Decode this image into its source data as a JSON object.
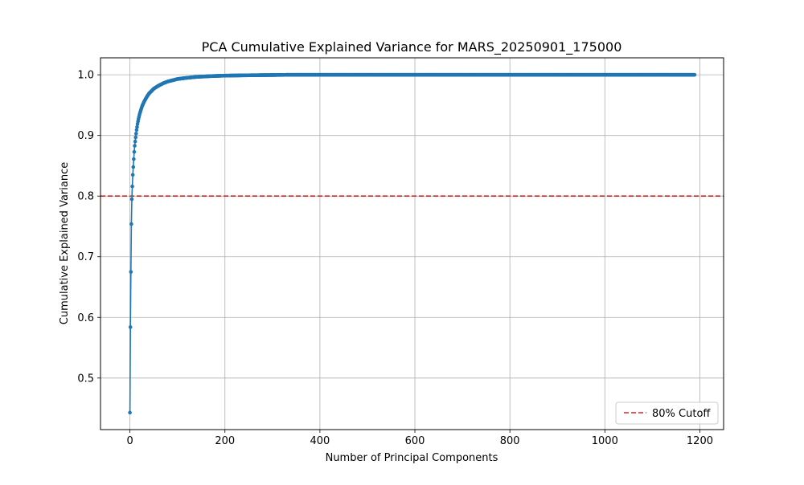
{
  "chart_data": {
    "type": "line",
    "title": "PCA Cumulative Explained Variance for MARS_20250901_175000",
    "xlabel": "Number of Principal Components",
    "ylabel": "Cumulative Explained Variance",
    "xlim": [
      -62,
      1250
    ],
    "ylim": [
      0.415,
      1.028
    ],
    "x_ticks": [
      0,
      200,
      400,
      600,
      800,
      1000,
      1200
    ],
    "x_tick_labels": [
      "0",
      "200",
      "400",
      "600",
      "800",
      "1000",
      "1200"
    ],
    "y_ticks": [
      0.5,
      0.6,
      0.7,
      0.8,
      0.9,
      1.0
    ],
    "y_tick_labels": [
      "0.5",
      "0.6",
      "0.7",
      "0.8",
      "0.9",
      "1.0"
    ],
    "grid": true,
    "series": [
      {
        "color": "#1f77b4",
        "marker": "circle",
        "x_start": 0,
        "x_end": 1189,
        "y_sampled": [
          [
            0,
            0.443
          ],
          [
            1,
            0.584
          ],
          [
            2,
            0.675
          ],
          [
            3,
            0.754
          ],
          [
            4,
            0.795
          ],
          [
            5,
            0.816
          ],
          [
            6,
            0.835
          ],
          [
            7,
            0.848
          ],
          [
            8,
            0.861
          ],
          [
            9,
            0.873
          ],
          [
            10,
            0.883
          ],
          [
            12,
            0.897
          ],
          [
            14,
            0.909
          ],
          [
            16,
            0.919
          ],
          [
            18,
            0.927
          ],
          [
            20,
            0.934
          ],
          [
            23,
            0.942
          ],
          [
            26,
            0.949
          ],
          [
            30,
            0.956
          ],
          [
            35,
            0.963
          ],
          [
            40,
            0.969
          ],
          [
            45,
            0.973
          ],
          [
            50,
            0.977
          ],
          [
            60,
            0.982
          ],
          [
            70,
            0.986
          ],
          [
            80,
            0.989
          ],
          [
            90,
            0.991
          ],
          [
            100,
            0.993
          ],
          [
            120,
            0.995
          ],
          [
            140,
            0.9965
          ],
          [
            170,
            0.9978
          ],
          [
            200,
            0.9986
          ],
          [
            250,
            0.9992
          ],
          [
            300,
            0.9996
          ],
          [
            330,
            0.9999
          ],
          [
            400,
            1.0
          ],
          [
            1189,
            1.0
          ]
        ]
      }
    ],
    "reference_lines": [
      {
        "y": 0.8,
        "color": "#d62728",
        "style": "dashed",
        "label": "80% Cutoff"
      }
    ],
    "legend": {
      "position": "lower-right",
      "entries": [
        "80% Cutoff"
      ]
    }
  }
}
